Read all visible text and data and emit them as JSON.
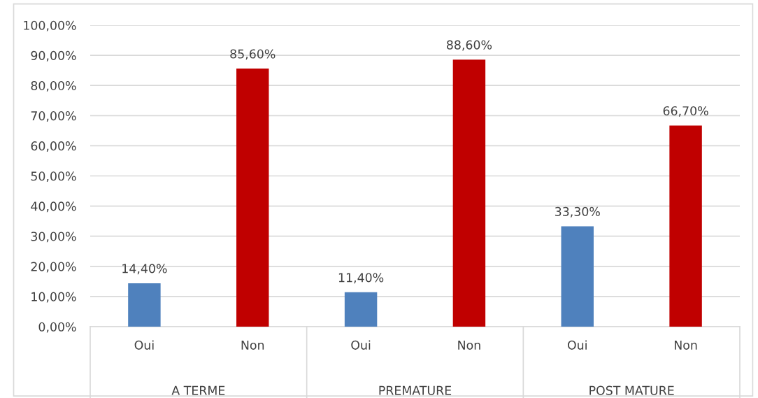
{
  "chart_data": {
    "type": "bar",
    "categories": [
      "Oui",
      "Non",
      "Oui",
      "Non",
      "Oui",
      "Non"
    ],
    "values": [
      14.4,
      85.6,
      11.4,
      88.6,
      33.3,
      66.7
    ],
    "colors": [
      "#4f81bd",
      "#c00000",
      "#4f81bd",
      "#c00000",
      "#4f81bd",
      "#c00000"
    ],
    "value_labels": [
      "14,40%",
      "85,60%",
      "11,40%",
      "88,60%",
      "33,30%",
      "66,70%"
    ],
    "ylim": [
      0,
      100
    ],
    "yticks": [
      {
        "value": 0,
        "label": "0,00%"
      },
      {
        "value": 10,
        "label": "10,00%"
      },
      {
        "value": 20,
        "label": "20,00%"
      },
      {
        "value": 30,
        "label": "30,00%"
      },
      {
        "value": 40,
        "label": "40,00%"
      },
      {
        "value": 50,
        "label": "50,00%"
      },
      {
        "value": 60,
        "label": "60,00%"
      },
      {
        "value": 70,
        "label": "70,00%"
      },
      {
        "value": 80,
        "label": "80,00%"
      },
      {
        "value": 90,
        "label": "90,00%"
      },
      {
        "value": 100,
        "label": "100,00%"
      }
    ],
    "annotations": [
      "A TERME",
      "PREMATURE",
      "POST MATURE"
    ],
    "grid": "y"
  }
}
